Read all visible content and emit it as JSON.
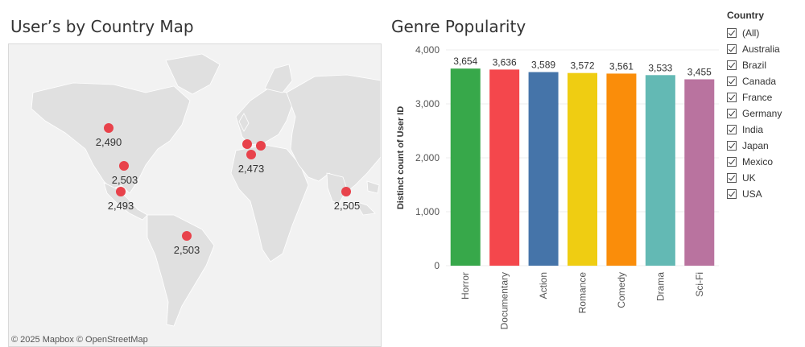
{
  "map": {
    "title": "User’s by Country Map",
    "attribution": "© 2025 Mapbox  © OpenStreetMap",
    "point_color": "#e8424b",
    "labels": [
      "2,490",
      "2,503",
      "2,493",
      "2,473",
      "2,505",
      "2,503"
    ]
  },
  "chart_data": {
    "type": "bar",
    "title": "Genre Popularity",
    "ylabel": "Distinct count of User ID",
    "xlabel": "",
    "ylim": [
      0,
      4000
    ],
    "yticks": [
      "0",
      "1,000",
      "2,000",
      "3,000",
      "4,000"
    ],
    "ytick_values": [
      0,
      1000,
      2000,
      3000,
      4000
    ],
    "categories": [
      "Horror",
      "Documentary",
      "Action",
      "Romance",
      "Comedy",
      "Drama",
      "Sci-Fi"
    ],
    "values": [
      3654,
      3636,
      3589,
      3572,
      3561,
      3533,
      3455
    ],
    "value_labels": [
      "3,654",
      "3,636",
      "3,589",
      "3,572",
      "3,561",
      "3,533",
      "3,455"
    ],
    "colors": [
      "#37a84a",
      "#f4474c",
      "#4574a9",
      "#efcd12",
      "#fa8d0a",
      "#63b9b4",
      "#b9739f"
    ],
    "grid": true
  },
  "legend": {
    "title": "Country",
    "items": [
      "(All)",
      "Australia",
      "Brazil",
      "Canada",
      "France",
      "Germany",
      "India",
      "Japan",
      "Mexico",
      "UK",
      "USA"
    ]
  }
}
